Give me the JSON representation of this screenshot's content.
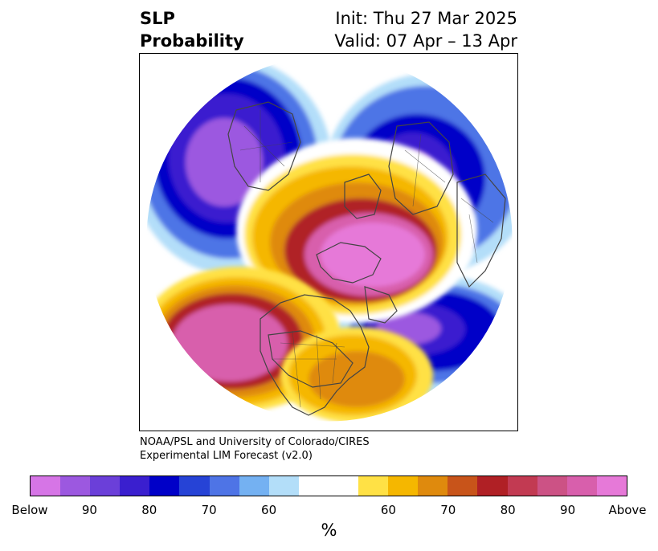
{
  "title": {
    "left_line1": "SLP",
    "left_line2": "Probability",
    "right_line1": "Init: Thu 27 Mar 2025",
    "right_line2": "Valid: 07 Apr – 13 Apr"
  },
  "credit": {
    "line1": "NOAA/PSL and University of Colorado/CIRES",
    "line2": "Experimental LIM Forecast (v2.0)"
  },
  "colorbar": {
    "unit": "%",
    "colors": [
      "#d675e6",
      "#9c58e0",
      "#6b3fd9",
      "#3a1fcf",
      "#0000c8",
      "#2643d6",
      "#4e74e6",
      "#74b1f2",
      "#b3def9",
      "#ffffff",
      "#ffffff",
      "#ffe145",
      "#f5b700",
      "#df8a0d",
      "#c8541a",
      "#b02025",
      "#c23a52",
      "#cc5285",
      "#d85fac",
      "#e679d8"
    ],
    "ticks": [
      "Below",
      "90",
      "80",
      "70",
      "60",
      "60",
      "70",
      "80",
      "90",
      "Above"
    ]
  },
  "map": {
    "projection": "north-polar-stereographic",
    "colors": {
      "below_max": "#9c58e0",
      "below_high": "#3a1fcf",
      "below_mid": "#0000c8",
      "below_low": "#4e74e6",
      "below_min": "#b3def9",
      "neutral": "#ffffff",
      "above_min": "#ffe145",
      "above_low": "#f5b700",
      "above_mid": "#df8a0d",
      "above_high": "#b02025",
      "above_max": "#d85fac",
      "coastline": "#444444"
    }
  }
}
